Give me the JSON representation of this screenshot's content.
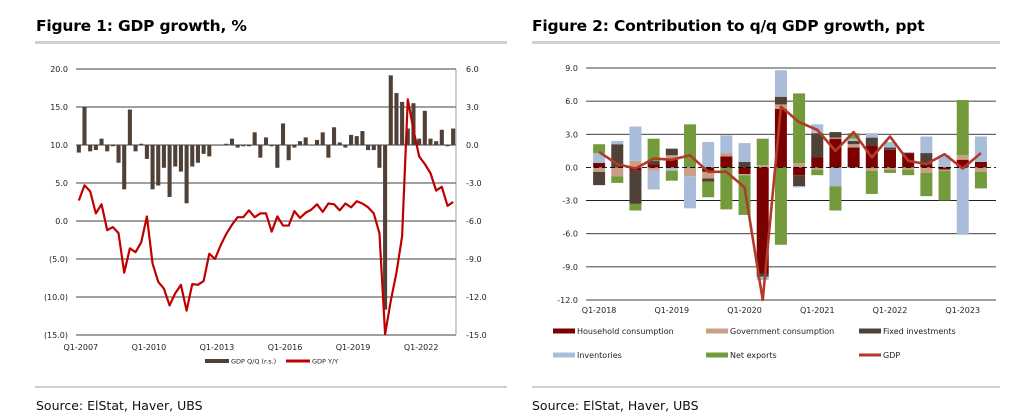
{
  "figure1": {
    "title": "Figure 1: GDP growth, %",
    "source": "Source: ElStat, Haver, UBS"
  },
  "figure2": {
    "title": "Figure 2: Contribution to q/q GDP growth, ppt",
    "source": "Source: ElStat, Haver, UBS"
  },
  "chart_data": [
    {
      "type": "bar+line",
      "title": "Figure 1: GDP growth, %",
      "start_quarter": "Q1-2007",
      "x_tick_labels": [
        "Q1-2007",
        "Q1-2010",
        "Q1-2013",
        "Q1-2016",
        "Q1-2019",
        "Q1-2022"
      ],
      "left_axis": {
        "ylim": [
          -15,
          20
        ],
        "ticks": [
          20,
          15,
          10,
          5,
          0,
          -5,
          -10,
          -15
        ],
        "tick_labels": [
          "20.0",
          "15.0",
          "10.0",
          "5.0",
          "0.0",
          "(5.0)",
          "(10.0)",
          "(15.0)"
        ]
      },
      "right_axis": {
        "ylim": [
          -15,
          6
        ],
        "ticks": [
          6,
          3,
          0,
          -3,
          -6,
          -9,
          -12,
          -15
        ],
        "tick_labels": [
          "6.0",
          "3.0",
          "0.0",
          "-3.0",
          "-6.0",
          "-9.0",
          "-12.0",
          "-15.0"
        ]
      },
      "grid": true,
      "legend_position": "bottom",
      "series": [
        {
          "name": "GDP Q/Q (r.s.)",
          "type": "bar",
          "axis": "right",
          "color": "#4f4038",
          "values": [
            -0.6,
            3.0,
            -0.5,
            -0.4,
            0.5,
            -0.5,
            -0.1,
            -1.4,
            -3.5,
            2.8,
            -0.5,
            0.1,
            -1.1,
            -3.5,
            -3.2,
            -1.8,
            -4.1,
            -1.7,
            -2.1,
            -4.6,
            -1.7,
            -1.4,
            -0.7,
            -0.9,
            0.0,
            0.0,
            0.1,
            0.5,
            -0.2,
            -0.1,
            -0.1,
            1.0,
            -1.0,
            0.6,
            -0.1,
            -1.8,
            1.7,
            -1.2,
            -0.2,
            0.3,
            0.6,
            0.0,
            0.4,
            1.0,
            -1.0,
            1.4,
            0.2,
            -0.2,
            0.8,
            0.7,
            1.1,
            -0.4,
            -0.4,
            -1.8,
            -13.0,
            5.5,
            4.1,
            3.4,
            1.3,
            3.3,
            0.5,
            2.7,
            0.5,
            0.3,
            1.2,
            -0.1,
            1.3
          ]
        },
        {
          "name": "GDP Y/Y",
          "type": "line",
          "axis": "left",
          "color": "#c00000",
          "values": [
            2.7,
            4.7,
            3.9,
            1.0,
            2.2,
            -1.2,
            -0.8,
            -1.6,
            -6.8,
            -3.6,
            -4.1,
            -2.8,
            0.6,
            -5.6,
            -8.0,
            -8.9,
            -11.1,
            -9.5,
            -8.4,
            -11.8,
            -8.3,
            -8.4,
            -7.9,
            -4.3,
            -5.0,
            -3.2,
            -1.7,
            -0.5,
            0.5,
            0.5,
            1.4,
            0.5,
            1.0,
            1.0,
            -1.4,
            0.6,
            -0.6,
            -0.6,
            1.3,
            0.4,
            1.1,
            1.5,
            2.2,
            1.2,
            2.3,
            2.2,
            1.4,
            2.3,
            1.8,
            2.6,
            2.3,
            1.8,
            1.0,
            -1.6,
            -14.9,
            -10.5,
            -6.8,
            -2.0,
            16.0,
            12.0,
            8.5,
            7.5,
            6.3,
            4.0,
            4.5,
            2.0,
            2.5
          ]
        }
      ]
    },
    {
      "type": "stacked-bar+line",
      "title": "Figure 2: Contribution to q/q GDP growth, ppt",
      "start_quarter": "Q1-2018",
      "x_tick_labels": [
        "Q1-2018",
        "Q1-2019",
        "Q1-2020",
        "Q1-2021",
        "Q1-2022",
        "Q1-2023"
      ],
      "ylim": [
        -12,
        9
      ],
      "y_ticks": [
        9,
        6,
        3,
        0,
        -3,
        -6,
        -9,
        -12
      ],
      "y_tick_labels": [
        "9.0",
        "6.0",
        "3.0",
        "0.0",
        "-3.0",
        "-6.0",
        "-9.0",
        "-12.0"
      ],
      "grid": true,
      "legend_position": "bottom",
      "series": [
        {
          "name": "Household consumption",
          "type": "bar",
          "color": "#7b0000",
          "values": [
            0.4,
            0.1,
            -0.3,
            0.3,
            0.8,
            0.0,
            -0.4,
            1.0,
            -0.6,
            -9.6,
            5.3,
            -0.7,
            0.9,
            2.6,
            1.8,
            2.0,
            1.6,
            1.3,
            0.3,
            -0.2,
            0.7,
            0.5
          ]
        },
        {
          "name": "Government consumption",
          "type": "bar",
          "color": "#c9a086",
          "values": [
            -0.4,
            -0.8,
            0.6,
            -0.3,
            0.3,
            -0.8,
            -0.6,
            0.3,
            -0.1,
            0.2,
            0.4,
            0.4,
            -0.2,
            0.1,
            0.3,
            -0.3,
            -0.2,
            -0.2,
            -0.5,
            -0.1,
            0.4,
            -0.4
          ]
        },
        {
          "name": "Fixed investments",
          "type": "bar",
          "color": "#4f4038",
          "values": [
            -1.2,
            2.0,
            -3.0,
            0.3,
            0.6,
            0.0,
            -0.3,
            0.0,
            0.5,
            -0.3,
            0.7,
            -1.0,
            2.2,
            0.5,
            0.3,
            0.7,
            0.2,
            0.0,
            1.0,
            0.0,
            0.0,
            0.0
          ]
        },
        {
          "name": "Inventories",
          "type": "bar",
          "color": "#a9bcd9",
          "values": [
            0.9,
            0.3,
            3.1,
            -1.7,
            -0.3,
            -2.9,
            2.3,
            1.6,
            1.7,
            -0.3,
            2.4,
            -0.1,
            0.8,
            -1.7,
            0.2,
            0.4,
            0.5,
            0.1,
            1.5,
            1.1,
            -6.1,
            2.3
          ]
        },
        {
          "name": "Net exports",
          "type": "bar",
          "color": "#739b3c",
          "values": [
            0.8,
            -0.6,
            -0.6,
            2.0,
            -0.9,
            3.9,
            -1.4,
            -3.8,
            -3.6,
            2.4,
            -7.0,
            6.3,
            -0.5,
            -2.2,
            0.5,
            -2.1,
            -0.3,
            -0.5,
            -2.1,
            -2.7,
            5.0,
            -1.5
          ]
        },
        {
          "name": "GDP",
          "type": "line",
          "color": "#b23a2a",
          "values": [
            1.4,
            0.3,
            -0.1,
            0.8,
            0.7,
            1.1,
            -0.4,
            -0.4,
            -1.8,
            -12.0,
            5.5,
            4.1,
            3.4,
            1.5,
            3.2,
            0.9,
            2.8,
            0.6,
            0.3,
            1.2,
            -0.1,
            1.3
          ]
        }
      ]
    }
  ]
}
